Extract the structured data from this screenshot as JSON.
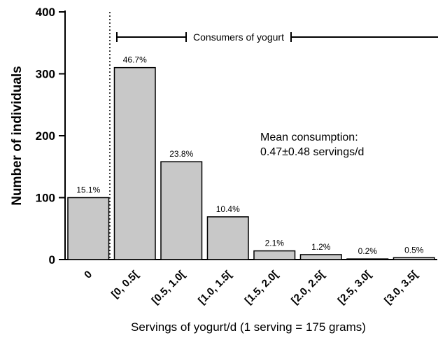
{
  "chart_data": {
    "type": "bar",
    "y_label": "Number of individuals",
    "x_label": "Servings of yogurt/d (1 serving = 175 grams)",
    "categories": [
      "0",
      "[0, 0.5[",
      "[0.5, 1.0[",
      "[1.0, 1.5[",
      "[1.5, 2.0[",
      "[2.0, 2.5[",
      "[2.5, 3.0[",
      "[3.0, 3.5["
    ],
    "values": [
      100,
      310,
      158,
      69,
      14,
      8,
      1,
      3
    ],
    "value_labels": [
      "15.1%",
      "46.7%",
      "23.8%",
      "10.4%",
      "2.1%",
      "1.2%",
      "0.2%",
      "0.5%"
    ],
    "color": "#c8c8c8",
    "ylim": [
      0,
      400
    ],
    "yticks": [
      0,
      100,
      200,
      300,
      400
    ],
    "annotations": [
      "Consumers of yogurt",
      "Mean consumption:",
      "0.47±0.48 servings/d"
    ]
  }
}
